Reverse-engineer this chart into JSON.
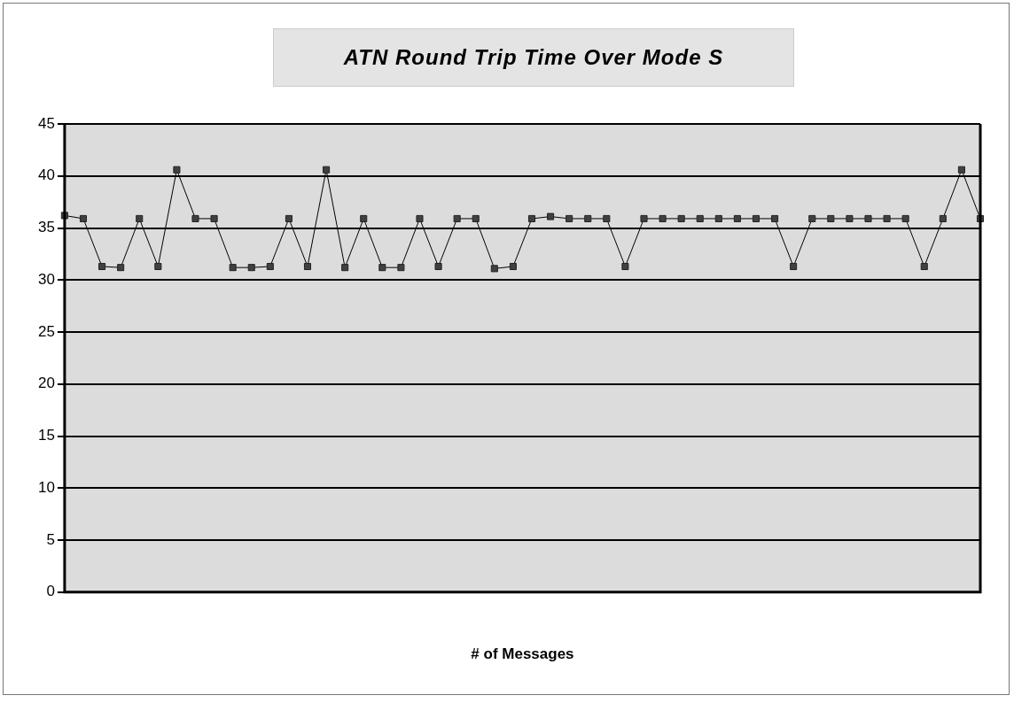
{
  "chart_data": {
    "type": "line",
    "title": "ATN Round Trip Time Over Mode S",
    "xlabel": "# of Messages",
    "categories": [
      null,
      null,
      null,
      null,
      null,
      null,
      null,
      null,
      null,
      null,
      null,
      null,
      null,
      null,
      null,
      null,
      null,
      null,
      null,
      null,
      null,
      null,
      null,
      null,
      null,
      null,
      null,
      null,
      null,
      null,
      null,
      null,
      null,
      null,
      null,
      null,
      null,
      null,
      null,
      null,
      null,
      null,
      null,
      null,
      null,
      null,
      null,
      null,
      null,
      null
    ],
    "series": [
      {
        "color": "#404040",
        "values": [
          36.2,
          35.9,
          31.3,
          31.2,
          35.9,
          31.3,
          40.6,
          35.9,
          35.9,
          31.2,
          31.2,
          31.3,
          35.9,
          31.3,
          40.6,
          31.2,
          35.9,
          31.2,
          31.2,
          35.9,
          31.3,
          35.9,
          35.9,
          31.1,
          31.3,
          35.9,
          36.1,
          35.9,
          35.9,
          35.9,
          31.3,
          35.9,
          35.9,
          35.9,
          35.9,
          35.9,
          35.9,
          35.9,
          35.9,
          31.3,
          35.9,
          35.9,
          35.9,
          35.9,
          35.9,
          35.9,
          31.3,
          35.9,
          40.6,
          35.9
        ]
      }
    ],
    "ylim": [
      0,
      45
    ],
    "yticks": [
      0,
      5,
      10,
      15,
      20,
      25,
      30,
      35,
      40,
      45
    ],
    "grid": "y",
    "legend": false,
    "marker": "square",
    "line_style": "solid"
  }
}
